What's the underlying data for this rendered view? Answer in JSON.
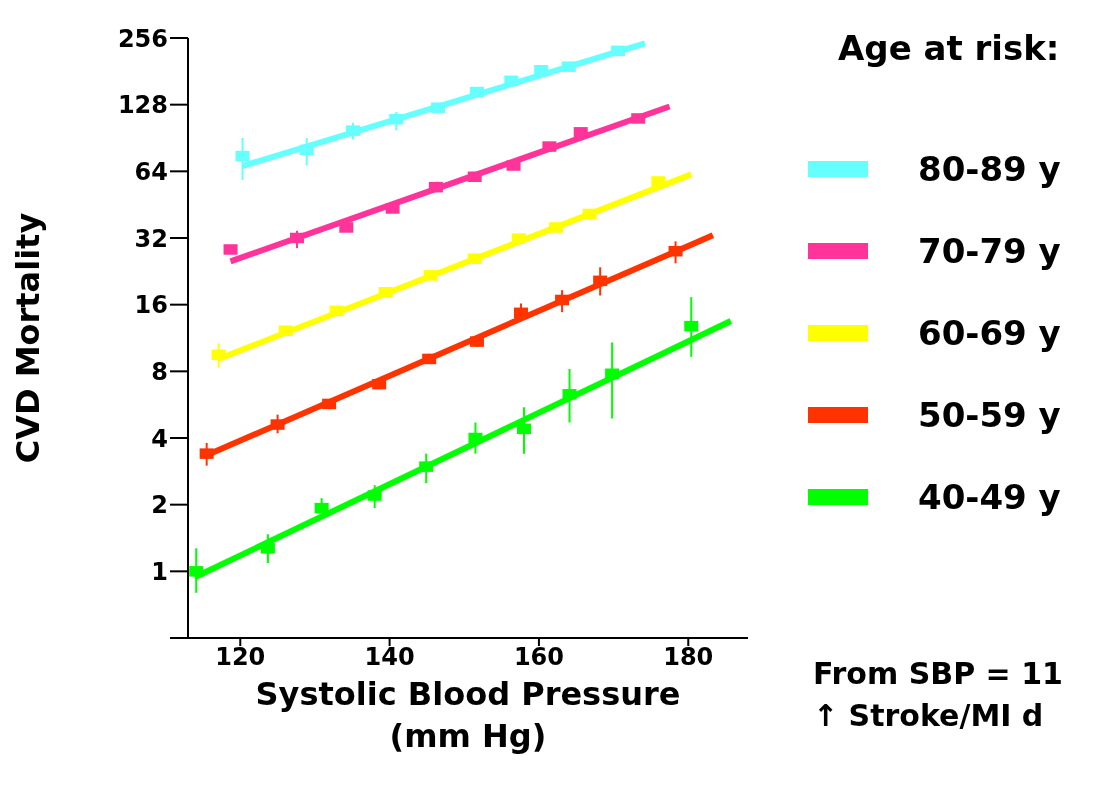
{
  "chart_data": {
    "type": "scatter",
    "xlabel": "Systolic Blood Pressure (mm Hg)",
    "ylabel": "CVD Mortality",
    "legend_title": "Age at risk:",
    "legend": "right",
    "marker": "square",
    "log": "y",
    "xlim": [
      113,
      188
    ],
    "xticks": [
      120,
      140,
      160,
      180
    ],
    "ylim": [
      0.5,
      256
    ],
    "yticks": [
      {
        "value": 0.5,
        "label": null
      },
      1,
      2,
      4,
      8,
      16,
      32,
      64,
      128,
      256
    ],
    "annotations": [
      "From SBP = 11",
      "↑ Stroke/MI d"
    ],
    "series": [
      {
        "name": "80-89 y",
        "color": "#66ffff",
        "x": [
          120.3,
          128.9,
          135.1,
          140.9,
          146.5,
          151.7,
          156.3,
          160.3,
          164.0,
          170.6
        ],
        "values": [
          75,
          80,
          97.7,
          110,
          124,
          146,
          164,
          183,
          190,
          224
        ],
        "errors": [
          [
            58.5,
            90.5
          ],
          [
            68,
            90.5
          ],
          [
            89,
            106
          ],
          [
            98,
            118.6
          ],
          null,
          null,
          null,
          null,
          null,
          null
        ]
      },
      {
        "color": "#66ffff",
        "type": "line",
        "marker": "none",
        "x": [
          120.3,
          174.2
        ],
        "values": [
          67.6,
          242
        ]
      },
      {
        "name": "70-79 y",
        "color": "#ff3399",
        "x": [
          118.7,
          127.6,
          134.2,
          140.4,
          146.2,
          151.4,
          156.6,
          161.4,
          165.6,
          173.3
        ],
        "values": [
          28.4,
          32,
          35.7,
          43.5,
          54.3,
          60.5,
          68,
          82.8,
          96,
          110.9
        ],
        "errors": [
          null,
          [
            28.8,
            34.5
          ],
          null,
          null,
          null,
          null,
          null,
          null,
          null,
          null
        ]
      },
      {
        "color": "#ff3399",
        "type": "line",
        "marker": "none",
        "x": [
          118.7,
          177.5
        ],
        "values": [
          25.1,
          125.6
        ]
      },
      {
        "name": "60-69 y",
        "color": "#ffff00",
        "x": [
          117.1,
          126.1,
          132.9,
          139.5,
          145.5,
          151.4,
          157.3,
          162.3,
          166.8,
          176.0
        ],
        "values": [
          9.5,
          12.2,
          15.0,
          18.2,
          21.7,
          25.8,
          31.8,
          35.7,
          41.1,
          57.6
        ],
        "errors": [
          [
            8.3,
            10.7
          ],
          null,
          null,
          null,
          null,
          null,
          null,
          null,
          null,
          null
        ]
      },
      {
        "color": "#ffff00",
        "type": "line",
        "marker": "none",
        "x": [
          117.1,
          180.4
        ],
        "values": [
          9.1,
          62
        ]
      },
      {
        "name": "50-59 y",
        "color": "#ff3300",
        "x": [
          115.5,
          125.0,
          131.9,
          138.6,
          145.3,
          151.7,
          157.6,
          163.1,
          168.2,
          178.3
        ],
        "values": [
          3.4,
          4.6,
          5.7,
          7.0,
          9.1,
          10.9,
          14.7,
          16.8,
          20.5,
          27.9
        ],
        "errors": [
          [
            3.0,
            3.8
          ],
          [
            4.2,
            5.1
          ],
          [
            5.4,
            6.0
          ],
          [
            6.7,
            7.3
          ],
          [
            8.7,
            9.6
          ],
          [
            10.3,
            11.6
          ],
          [
            13.8,
            16.2
          ],
          [
            14.8,
            18.6
          ],
          [
            17.6,
            23.6
          ],
          [
            24.6,
            30.9
          ]
        ]
      },
      {
        "color": "#ff3300",
        "type": "line",
        "marker": "none",
        "x": [
          115.1,
          183.3
        ],
        "values": [
          3.3,
          32.9
        ]
      },
      {
        "name": "40-49 y",
        "color": "#00ff00",
        "x": [
          114.1,
          123.7,
          130.9,
          138.0,
          144.9,
          151.5,
          158.0,
          164.1,
          169.8,
          180.4
        ],
        "values": [
          1.0,
          1.27,
          1.93,
          2.2,
          2.97,
          4.0,
          4.4,
          6.3,
          7.8,
          12.8
        ],
        "errors": [
          [
            0.8,
            1.27
          ],
          [
            1.09,
            1.47
          ],
          [
            1.83,
            2.14
          ],
          [
            1.93,
            2.45
          ],
          [
            2.5,
            3.4
          ],
          [
            3.4,
            4.7
          ],
          [
            3.4,
            5.5
          ],
          [
            4.7,
            8.2
          ],
          [
            4.9,
            10.8
          ],
          [
            9.3,
            17.3
          ]
        ]
      },
      {
        "color": "#00ff00",
        "type": "line",
        "marker": "none",
        "x": [
          113.9,
          185.7
        ],
        "values": [
          0.94,
          13.5
        ]
      }
    ]
  }
}
